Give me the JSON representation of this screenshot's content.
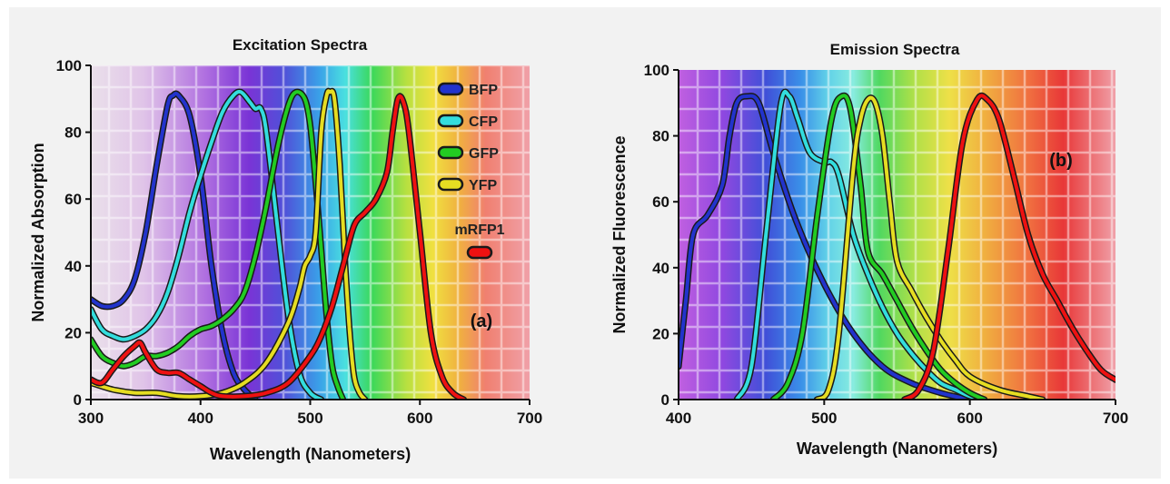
{
  "chart_data": [
    {
      "type": "line",
      "title": "Excitation Spectra",
      "xlabel": "Wavelength (Nanometers)",
      "ylabel": "Normalized Absorption",
      "xlim": [
        300,
        700
      ],
      "ylim": [
        0,
        100
      ],
      "xticks": [
        "300",
        "400",
        "500",
        "600",
        "700"
      ],
      "yticks": [
        "0",
        "20",
        "40",
        "60",
        "80",
        "100"
      ],
      "grid": true,
      "legend_position": "top-right",
      "annotation": "(a)",
      "series": [
        {
          "name": "BFP",
          "color": "#2233cc",
          "points": [
            [
              300,
              30
            ],
            [
              310,
              28
            ],
            [
              320,
              28
            ],
            [
              330,
              30
            ],
            [
              340,
              36
            ],
            [
              350,
              50
            ],
            [
              360,
              70
            ],
            [
              370,
              88
            ],
            [
              375,
              91
            ],
            [
              380,
              91
            ],
            [
              390,
              85
            ],
            [
              400,
              67
            ],
            [
              410,
              40
            ],
            [
              420,
              20
            ],
            [
              430,
              8
            ],
            [
              440,
              3
            ],
            [
              450,
              0
            ]
          ]
        },
        {
          "name": "CFP",
          "color": "#33dddd",
          "points": [
            [
              300,
              27
            ],
            [
              310,
              21
            ],
            [
              320,
              19
            ],
            [
              330,
              18
            ],
            [
              340,
              19
            ],
            [
              350,
              21
            ],
            [
              360,
              25
            ],
            [
              370,
              32
            ],
            [
              380,
              43
            ],
            [
              390,
              56
            ],
            [
              400,
              67
            ],
            [
              410,
              77
            ],
            [
              420,
              86
            ],
            [
              430,
              91
            ],
            [
              437,
              92
            ],
            [
              445,
              89
            ],
            [
              450,
              87
            ],
            [
              455,
              87
            ],
            [
              460,
              80
            ],
            [
              470,
              52
            ],
            [
              480,
              25
            ],
            [
              490,
              8
            ],
            [
              500,
              2
            ],
            [
              510,
              0
            ]
          ]
        },
        {
          "name": "GFP",
          "color": "#22cc22",
          "points": [
            [
              300,
              18
            ],
            [
              310,
              13
            ],
            [
              320,
              11
            ],
            [
              330,
              10
            ],
            [
              340,
              11
            ],
            [
              350,
              13
            ],
            [
              360,
              13
            ],
            [
              370,
              14
            ],
            [
              380,
              16
            ],
            [
              390,
              19
            ],
            [
              400,
              21
            ],
            [
              410,
              22
            ],
            [
              420,
              24
            ],
            [
              430,
              27
            ],
            [
              440,
              32
            ],
            [
              450,
              43
            ],
            [
              460,
              58
            ],
            [
              470,
              75
            ],
            [
              480,
              88
            ],
            [
              487,
              92
            ],
            [
              495,
              90
            ],
            [
              500,
              82
            ],
            [
              505,
              65
            ],
            [
              510,
              45
            ],
            [
              515,
              25
            ],
            [
              520,
              10
            ],
            [
              525,
              4
            ],
            [
              530,
              0
            ]
          ]
        },
        {
          "name": "YFP",
          "color": "#e6dd22",
          "points": [
            [
              300,
              5
            ],
            [
              320,
              3
            ],
            [
              340,
              2
            ],
            [
              360,
              2
            ],
            [
              380,
              1
            ],
            [
              400,
              1
            ],
            [
              420,
              2
            ],
            [
              440,
              5
            ],
            [
              460,
              11
            ],
            [
              480,
              23
            ],
            [
              490,
              33
            ],
            [
              495,
              40
            ],
            [
              500,
              43
            ],
            [
              505,
              50
            ],
            [
              510,
              80
            ],
            [
              515,
              91
            ],
            [
              518,
              92
            ],
            [
              522,
              90
            ],
            [
              527,
              70
            ],
            [
              532,
              40
            ],
            [
              536,
              20
            ],
            [
              540,
              7
            ],
            [
              545,
              2
            ],
            [
              550,
              0
            ]
          ]
        },
        {
          "name": "mRFP1",
          "color": "#ee1111",
          "points": [
            [
              300,
              6
            ],
            [
              310,
              5
            ],
            [
              320,
              9
            ],
            [
              330,
              13
            ],
            [
              340,
              16
            ],
            [
              345,
              17
            ],
            [
              350,
              14
            ],
            [
              360,
              9
            ],
            [
              370,
              8
            ],
            [
              380,
              8
            ],
            [
              390,
              6
            ],
            [
              400,
              4
            ],
            [
              410,
              2
            ],
            [
              420,
              1
            ],
            [
              440,
              1
            ],
            [
              460,
              2
            ],
            [
              480,
              5
            ],
            [
              500,
              13
            ],
            [
              510,
              19
            ],
            [
              520,
              28
            ],
            [
              530,
              40
            ],
            [
              540,
              52
            ],
            [
              550,
              56
            ],
            [
              560,
              60
            ],
            [
              570,
              68
            ],
            [
              575,
              80
            ],
            [
              580,
              90
            ],
            [
              585,
              89
            ],
            [
              590,
              80
            ],
            [
              600,
              50
            ],
            [
              610,
              20
            ],
            [
              620,
              7
            ],
            [
              630,
              2
            ],
            [
              640,
              0
            ]
          ]
        }
      ]
    },
    {
      "type": "line",
      "title": "Emission Spectra",
      "xlabel": "Wavelength (Nanometers)",
      "ylabel": "Normalized Fluorescence",
      "xlim": [
        400,
        700
      ],
      "ylim": [
        0,
        100
      ],
      "xticks": [
        "400",
        "500",
        "600",
        "700"
      ],
      "yticks": [
        "0",
        "20",
        "40",
        "60",
        "80",
        "100"
      ],
      "grid": true,
      "annotation": "(b)",
      "series": [
        {
          "name": "BFP",
          "color": "#2233cc",
          "points": [
            [
              400,
              10
            ],
            [
              405,
              30
            ],
            [
              410,
              50
            ],
            [
              420,
              56
            ],
            [
              430,
              65
            ],
            [
              435,
              80
            ],
            [
              440,
              90
            ],
            [
              447,
              92
            ],
            [
              455,
              90
            ],
            [
              465,
              75
            ],
            [
              480,
              55
            ],
            [
              500,
              35
            ],
            [
              520,
              20
            ],
            [
              540,
              10
            ],
            [
              560,
              5
            ],
            [
              580,
              2
            ],
            [
              600,
              0
            ]
          ]
        },
        {
          "name": "CFP",
          "color": "#33dddd",
          "points": [
            [
              440,
              0
            ],
            [
              450,
              10
            ],
            [
              460,
              50
            ],
            [
              470,
              89
            ],
            [
              476,
              92
            ],
            [
              482,
              85
            ],
            [
              490,
              75
            ],
            [
              500,
              72
            ],
            [
              505,
              72
            ],
            [
              510,
              68
            ],
            [
              520,
              50
            ],
            [
              530,
              38
            ],
            [
              540,
              28
            ],
            [
              550,
              20
            ],
            [
              560,
              14
            ],
            [
              570,
              9
            ],
            [
              580,
              5
            ],
            [
              590,
              3
            ],
            [
              600,
              1
            ],
            [
              610,
              0
            ]
          ]
        },
        {
          "name": "GFP",
          "color": "#22cc22",
          "points": [
            [
              465,
              0
            ],
            [
              475,
              5
            ],
            [
              485,
              20
            ],
            [
              495,
              55
            ],
            [
              505,
              85
            ],
            [
              512,
              92
            ],
            [
              518,
              88
            ],
            [
              525,
              65
            ],
            [
              530,
              45
            ],
            [
              540,
              38
            ],
            [
              550,
              30
            ],
            [
              560,
              22
            ],
            [
              570,
              15
            ],
            [
              580,
              9
            ],
            [
              590,
              5
            ],
            [
              600,
              2
            ],
            [
              610,
              0
            ]
          ]
        },
        {
          "name": "YFP",
          "color": "#e6dd22",
          "points": [
            [
              495,
              0
            ],
            [
              503,
              3
            ],
            [
              510,
              20
            ],
            [
              520,
              70
            ],
            [
              525,
              85
            ],
            [
              530,
              91
            ],
            [
              535,
              90
            ],
            [
              540,
              80
            ],
            [
              545,
              60
            ],
            [
              550,
              42
            ],
            [
              560,
              33
            ],
            [
              570,
              25
            ],
            [
              580,
              18
            ],
            [
              590,
              12
            ],
            [
              600,
              7
            ],
            [
              620,
              3
            ],
            [
              640,
              1
            ],
            [
              650,
              0
            ]
          ]
        },
        {
          "name": "mRFP1",
          "color": "#ee1111",
          "points": [
            [
              555,
              0
            ],
            [
              565,
              3
            ],
            [
              575,
              15
            ],
            [
              585,
              45
            ],
            [
              595,
              78
            ],
            [
              605,
              91
            ],
            [
              612,
              91
            ],
            [
              620,
              85
            ],
            [
              630,
              68
            ],
            [
              640,
              50
            ],
            [
              650,
              38
            ],
            [
              660,
              30
            ],
            [
              670,
              22
            ],
            [
              680,
              15
            ],
            [
              690,
              9
            ],
            [
              700,
              6
            ]
          ]
        }
      ]
    }
  ]
}
